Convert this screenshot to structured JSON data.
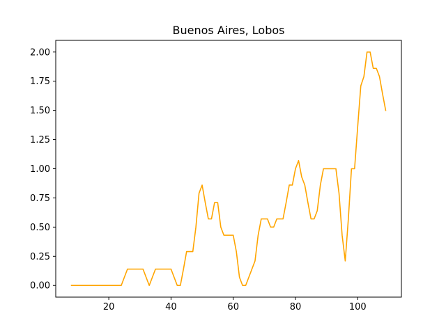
{
  "chart_data": {
    "type": "line",
    "title": "Buenos Aires, Lobos",
    "xlabel": "",
    "ylabel": "",
    "xlim": [
      2.95,
      114.05
    ],
    "ylim": [
      -0.1,
      2.1
    ],
    "xticks": [
      20,
      40,
      60,
      80,
      100
    ],
    "yticks": [
      0.0,
      0.25,
      0.5,
      0.75,
      1.0,
      1.25,
      1.5,
      1.75,
      2.0
    ],
    "ytick_labels": [
      "0.00",
      "0.25",
      "0.50",
      "0.75",
      "1.00",
      "1.25",
      "1.50",
      "1.75",
      "2.00"
    ],
    "grid": false,
    "color": "#ffa500",
    "series": [
      {
        "x": [
          8,
          9,
          10,
          11,
          12,
          13,
          14,
          15,
          16,
          17,
          18,
          19,
          20,
          21,
          22,
          23,
          24,
          25,
          26,
          27,
          28,
          29,
          30,
          31,
          32,
          33,
          34,
          35,
          36,
          37,
          38,
          39,
          40,
          41,
          42,
          43,
          44,
          45,
          46,
          47,
          48,
          49,
          50,
          51,
          52,
          53,
          54,
          55,
          56,
          57,
          58,
          59,
          60,
          61,
          62,
          63,
          64,
          65,
          66,
          67,
          68,
          69,
          70,
          71,
          72,
          73,
          74,
          75,
          76,
          77,
          78,
          79,
          80,
          81,
          82,
          83,
          84,
          85,
          86,
          87,
          88,
          89,
          90,
          91,
          92,
          93,
          94,
          95,
          96,
          97,
          98,
          99,
          100,
          101,
          102,
          103,
          104,
          105,
          106,
          107,
          108,
          109
        ],
        "y": [
          0,
          0,
          0,
          0,
          0,
          0,
          0,
          0,
          0,
          0,
          0,
          0,
          0,
          0,
          0,
          0,
          0,
          0.07,
          0.14,
          0.14,
          0.14,
          0.14,
          0.14,
          0.14,
          0.07,
          0,
          0.07,
          0.14,
          0.14,
          0.14,
          0.14,
          0.14,
          0.14,
          0.07,
          0,
          0,
          0.14,
          0.29,
          0.29,
          0.29,
          0.5,
          0.79,
          0.86,
          0.71,
          0.57,
          0.57,
          0.71,
          0.71,
          0.5,
          0.43,
          0.43,
          0.43,
          0.43,
          0.29,
          0.07,
          0,
          0,
          0.07,
          0.14,
          0.21,
          0.43,
          0.57,
          0.57,
          0.57,
          0.5,
          0.5,
          0.57,
          0.57,
          0.57,
          0.71,
          0.86,
          0.86,
          1.0,
          1.07,
          0.93,
          0.86,
          0.71,
          0.57,
          0.57,
          0.64,
          0.86,
          1.0,
          1.0,
          1.0,
          1.0,
          1.0,
          0.79,
          0.43,
          0.21,
          0.57,
          1.0,
          1.0,
          1.36,
          1.71,
          1.79,
          2.0,
          2.0,
          1.86,
          1.86,
          1.79,
          1.64,
          1.5
        ]
      }
    ]
  }
}
